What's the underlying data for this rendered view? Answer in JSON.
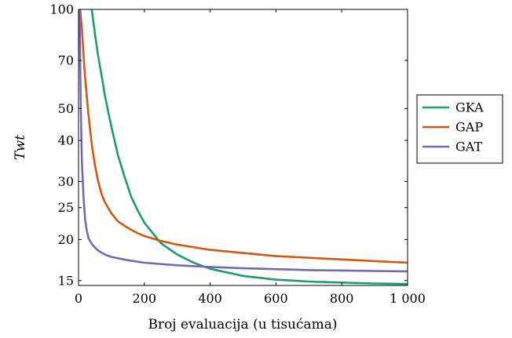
{
  "chart_data": {
    "type": "line",
    "title": "",
    "xlabel": "Broj evaluacija (u tisućama)",
    "ylabel": "Twt",
    "x_scale": "linear",
    "y_scale": "log",
    "xlim": [
      0,
      1000
    ],
    "ylim": [
      14.5,
      100
    ],
    "x_ticks": [
      0,
      200,
      400,
      600,
      800,
      1000
    ],
    "x_tick_labels": [
      "0",
      "200",
      "400",
      "600",
      "800",
      "1 000"
    ],
    "y_ticks": [
      15,
      20,
      25,
      30,
      40,
      50,
      70,
      100
    ],
    "y_tick_labels": [
      "15",
      "20",
      "25",
      "30",
      "40",
      "50",
      "70",
      "100"
    ],
    "grid": false,
    "legend_position": "outside-right",
    "series": [
      {
        "name": "GKA",
        "color": "#1f9a77",
        "x": [
          40,
          50,
          60,
          70,
          80,
          90,
          100,
          120,
          140,
          160,
          180,
          200,
          250,
          300,
          350,
          400,
          500,
          600,
          700,
          800,
          900,
          1000
        ],
        "y": [
          100,
          84,
          72,
          63,
          55,
          49,
          44,
          36,
          31,
          27,
          24.5,
          22.5,
          19.5,
          18,
          17,
          16.3,
          15.5,
          15.1,
          14.9,
          14.8,
          14.7,
          14.65
        ]
      },
      {
        "name": "GAP",
        "color": "#d3580f",
        "x": [
          5,
          10,
          15,
          20,
          30,
          40,
          50,
          60,
          70,
          80,
          100,
          120,
          140,
          160,
          180,
          200,
          250,
          300,
          400,
          500,
          600,
          700,
          800,
          900,
          1000
        ],
        "y": [
          100,
          88,
          73,
          62,
          48,
          39,
          33.5,
          30,
          27.5,
          26,
          24,
          22.7,
          22,
          21.4,
          20.9,
          20.5,
          19.8,
          19.3,
          18.6,
          18.2,
          17.8,
          17.6,
          17.4,
          17.2,
          17
        ]
      },
      {
        "name": "GAT",
        "color": "#7467b5",
        "x": [
          3,
          5,
          7,
          10,
          15,
          20,
          25,
          30,
          40,
          50,
          60,
          80,
          100,
          150,
          200,
          300,
          400,
          500,
          600,
          700,
          800,
          900,
          1000
        ],
        "y": [
          100,
          70,
          50,
          35,
          27,
          23,
          21.3,
          20.2,
          19.4,
          18.9,
          18.5,
          18,
          17.7,
          17.3,
          17,
          16.7,
          16.5,
          16.35,
          16.25,
          16.15,
          16.1,
          16.05,
          16
        ]
      }
    ]
  }
}
